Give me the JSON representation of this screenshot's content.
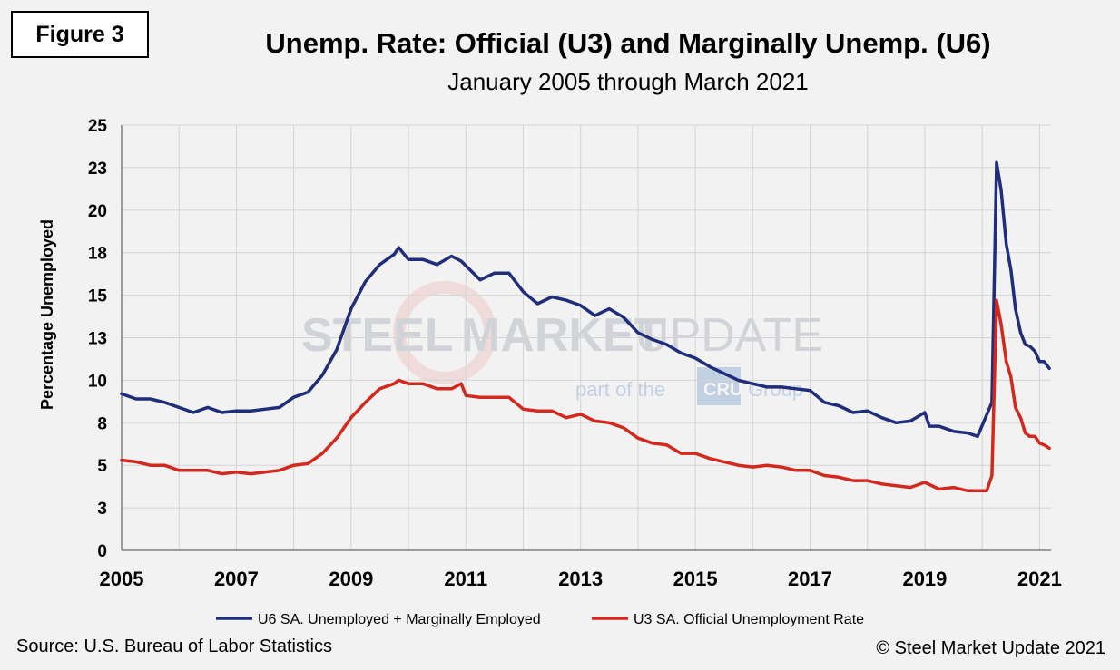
{
  "figure_label": "Figure 3",
  "title": "Unemp. Rate: Official (U3) and Marginally Unemp. (U6)",
  "subtitle": "January 2005 through March 2021",
  "source": "Source: U.S. Bureau  of Labor Statistics",
  "copyright": "© Steel Market Update 2021",
  "watermark": {
    "brand_a": "STEEL",
    "brand_b": "MARKET",
    "brand_c": "UPDATE",
    "tagline_pre": "part of the",
    "tagline_logo": "CRU",
    "tagline_post": "Group"
  },
  "colors": {
    "u6": "#1f2d7a",
    "u3": "#d2281e",
    "grid": "#d4d4d4",
    "background": "#f2f2f2"
  },
  "chart_data": {
    "type": "line",
    "ylabel": "Percentage Unemployed",
    "ylim": [
      0,
      25
    ],
    "yticks": [
      0,
      2.5,
      5,
      7.5,
      10,
      12.5,
      15,
      17.5,
      20,
      22.5,
      25
    ],
    "ytick_labels": [
      "0",
      "3",
      "5",
      "8",
      "10",
      "13",
      "15",
      "18",
      "20",
      "23",
      "25"
    ],
    "xlim": [
      2005.0,
      2021.2
    ],
    "xticks": [
      2005,
      2007,
      2009,
      2011,
      2013,
      2015,
      2017,
      2019,
      2021
    ],
    "xtick_labels": [
      "2005",
      "2007",
      "2009",
      "2011",
      "2013",
      "2015",
      "2017",
      "2019",
      "2021"
    ],
    "grid": true,
    "legend_position": "bottom",
    "series": [
      {
        "name": "U6 SA. Unemployed + Marginally Employed",
        "color": "#1f2d7a",
        "points": [
          [
            2005.0,
            9.2
          ],
          [
            2005.25,
            8.9
          ],
          [
            2005.5,
            8.9
          ],
          [
            2005.75,
            8.7
          ],
          [
            2006.0,
            8.4
          ],
          [
            2006.25,
            8.1
          ],
          [
            2006.5,
            8.4
          ],
          [
            2006.75,
            8.1
          ],
          [
            2007.0,
            8.2
          ],
          [
            2007.25,
            8.2
          ],
          [
            2007.5,
            8.3
          ],
          [
            2007.75,
            8.4
          ],
          [
            2008.0,
            9.0
          ],
          [
            2008.25,
            9.3
          ],
          [
            2008.5,
            10.3
          ],
          [
            2008.75,
            11.8
          ],
          [
            2009.0,
            14.2
          ],
          [
            2009.25,
            15.8
          ],
          [
            2009.5,
            16.8
          ],
          [
            2009.75,
            17.4
          ],
          [
            2009.83,
            17.8
          ],
          [
            2010.0,
            17.1
          ],
          [
            2010.25,
            17.1
          ],
          [
            2010.5,
            16.8
          ],
          [
            2010.75,
            17.3
          ],
          [
            2010.92,
            17.0
          ],
          [
            2011.25,
            15.9
          ],
          [
            2011.5,
            16.3
          ],
          [
            2011.75,
            16.3
          ],
          [
            2012.0,
            15.2
          ],
          [
            2012.25,
            14.5
          ],
          [
            2012.5,
            14.9
          ],
          [
            2012.75,
            14.7
          ],
          [
            2013.0,
            14.4
          ],
          [
            2013.25,
            13.8
          ],
          [
            2013.5,
            14.2
          ],
          [
            2013.75,
            13.7
          ],
          [
            2014.0,
            12.8
          ],
          [
            2014.25,
            12.4
          ],
          [
            2014.5,
            12.1
          ],
          [
            2014.75,
            11.6
          ],
          [
            2015.0,
            11.3
          ],
          [
            2015.25,
            10.8
          ],
          [
            2015.5,
            10.4
          ],
          [
            2015.75,
            10.0
          ],
          [
            2016.0,
            9.8
          ],
          [
            2016.25,
            9.6
          ],
          [
            2016.5,
            9.6
          ],
          [
            2016.75,
            9.5
          ],
          [
            2017.0,
            9.4
          ],
          [
            2017.25,
            8.7
          ],
          [
            2017.5,
            8.5
          ],
          [
            2017.75,
            8.1
          ],
          [
            2018.0,
            8.2
          ],
          [
            2018.25,
            7.8
          ],
          [
            2018.5,
            7.5
          ],
          [
            2018.75,
            7.6
          ],
          [
            2019.0,
            8.1
          ],
          [
            2019.08,
            7.3
          ],
          [
            2019.25,
            7.3
          ],
          [
            2019.5,
            7.0
          ],
          [
            2019.75,
            6.9
          ],
          [
            2019.92,
            6.7
          ],
          [
            2020.17,
            8.7
          ],
          [
            2020.25,
            22.8
          ],
          [
            2020.33,
            21.2
          ],
          [
            2020.42,
            18.0
          ],
          [
            2020.5,
            16.5
          ],
          [
            2020.58,
            14.2
          ],
          [
            2020.67,
            12.8
          ],
          [
            2020.75,
            12.1
          ],
          [
            2020.83,
            12.0
          ],
          [
            2020.92,
            11.7
          ],
          [
            2021.0,
            11.1
          ],
          [
            2021.08,
            11.1
          ],
          [
            2021.17,
            10.7
          ]
        ]
      },
      {
        "name": "U3 SA. Official Unemployment Rate",
        "color": "#d2281e",
        "points": [
          [
            2005.0,
            5.3
          ],
          [
            2005.25,
            5.2
          ],
          [
            2005.5,
            5.0
          ],
          [
            2005.75,
            5.0
          ],
          [
            2006.0,
            4.7
          ],
          [
            2006.25,
            4.7
          ],
          [
            2006.5,
            4.7
          ],
          [
            2006.75,
            4.5
          ],
          [
            2007.0,
            4.6
          ],
          [
            2007.25,
            4.5
          ],
          [
            2007.5,
            4.6
          ],
          [
            2007.75,
            4.7
          ],
          [
            2008.0,
            5.0
          ],
          [
            2008.25,
            5.1
          ],
          [
            2008.5,
            5.7
          ],
          [
            2008.75,
            6.6
          ],
          [
            2009.0,
            7.8
          ],
          [
            2009.25,
            8.7
          ],
          [
            2009.5,
            9.5
          ],
          [
            2009.75,
            9.8
          ],
          [
            2009.83,
            10.0
          ],
          [
            2010.0,
            9.8
          ],
          [
            2010.25,
            9.8
          ],
          [
            2010.5,
            9.5
          ],
          [
            2010.75,
            9.5
          ],
          [
            2010.92,
            9.8
          ],
          [
            2011.0,
            9.1
          ],
          [
            2011.25,
            9.0
          ],
          [
            2011.5,
            9.0
          ],
          [
            2011.75,
            9.0
          ],
          [
            2012.0,
            8.3
          ],
          [
            2012.25,
            8.2
          ],
          [
            2012.5,
            8.2
          ],
          [
            2012.75,
            7.8
          ],
          [
            2013.0,
            8.0
          ],
          [
            2013.25,
            7.6
          ],
          [
            2013.5,
            7.5
          ],
          [
            2013.75,
            7.2
          ],
          [
            2014.0,
            6.6
          ],
          [
            2014.25,
            6.3
          ],
          [
            2014.5,
            6.2
          ],
          [
            2014.75,
            5.7
          ],
          [
            2015.0,
            5.7
          ],
          [
            2015.25,
            5.4
          ],
          [
            2015.5,
            5.2
          ],
          [
            2015.75,
            5.0
          ],
          [
            2016.0,
            4.9
          ],
          [
            2016.25,
            5.0
          ],
          [
            2016.5,
            4.9
          ],
          [
            2016.75,
            4.7
          ],
          [
            2017.0,
            4.7
          ],
          [
            2017.25,
            4.4
          ],
          [
            2017.5,
            4.3
          ],
          [
            2017.75,
            4.1
          ],
          [
            2018.0,
            4.1
          ],
          [
            2018.25,
            3.9
          ],
          [
            2018.5,
            3.8
          ],
          [
            2018.75,
            3.7
          ],
          [
            2019.0,
            4.0
          ],
          [
            2019.25,
            3.6
          ],
          [
            2019.5,
            3.7
          ],
          [
            2019.75,
            3.5
          ],
          [
            2019.92,
            3.5
          ],
          [
            2020.08,
            3.5
          ],
          [
            2020.17,
            4.4
          ],
          [
            2020.25,
            14.7
          ],
          [
            2020.33,
            13.3
          ],
          [
            2020.42,
            11.1
          ],
          [
            2020.5,
            10.2
          ],
          [
            2020.58,
            8.4
          ],
          [
            2020.67,
            7.8
          ],
          [
            2020.75,
            6.9
          ],
          [
            2020.83,
            6.7
          ],
          [
            2020.92,
            6.7
          ],
          [
            2021.0,
            6.3
          ],
          [
            2021.08,
            6.2
          ],
          [
            2021.17,
            6.0
          ]
        ]
      }
    ]
  }
}
